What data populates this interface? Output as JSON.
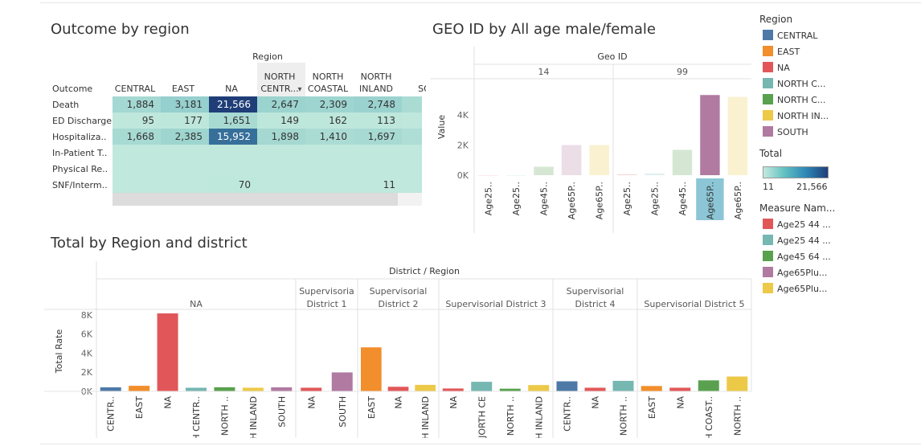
{
  "titles": {
    "outcome": "Outcome by region",
    "geo": "GEO ID by All age male/female",
    "total": "Total by Region and district"
  },
  "palette": {
    "CENTRAL": "#4e79a7",
    "EAST": "#f28e2b",
    "NA": "#e15759",
    "NORTH CENTRAL": "#76b7b2",
    "NORTH COASTAL": "#59a14f",
    "NORTH INLAND": "#edc948",
    "SOUTH": "#b07aa1"
  },
  "legend_region": {
    "title": "Region",
    "items": [
      {
        "label": "CENTRAL",
        "color": "#4e79a7"
      },
      {
        "label": "EAST",
        "color": "#f28e2b"
      },
      {
        "label": "NA",
        "color": "#e15759"
      },
      {
        "label": "NORTH C...",
        "color": "#76b7b2"
      },
      {
        "label": "NORTH C...",
        "color": "#59a14f"
      },
      {
        "label": "NORTH IN...",
        "color": "#edc948"
      },
      {
        "label": "SOUTH",
        "color": "#b07aa1"
      }
    ]
  },
  "legend_total": {
    "title": "Total",
    "min": "11",
    "max": "21,566"
  },
  "legend_measure": {
    "title": "Measure Nam...",
    "items": [
      {
        "label": "Age25 44 ...",
        "color": "#e15759"
      },
      {
        "label": "Age25 44 ...",
        "color": "#76b7b2"
      },
      {
        "label": "Age45 64 ...",
        "color": "#59a14f"
      },
      {
        "label": "Age65Plu...",
        "color": "#b07aa1"
      },
      {
        "label": "Age65Plu...",
        "color": "#edc948"
      }
    ]
  },
  "chart_data": [
    {
      "type": "table",
      "title": "Outcome by region",
      "column_header": "Region",
      "row_header": "Outcome",
      "columns": [
        {
          "line1": "",
          "line2": "CENTRAL"
        },
        {
          "line1": "",
          "line2": "EAST"
        },
        {
          "line1": "",
          "line2": "NA"
        },
        {
          "line1": "NORTH",
          "line2": "CENTR..."
        },
        {
          "line1": "NORTH",
          "line2": "COASTAL"
        },
        {
          "line1": "NORTH",
          "line2": "INLAND"
        },
        {
          "line1": "",
          "line2": "SO"
        }
      ],
      "sort_glyph": "▾",
      "rows": [
        {
          "label": "Death",
          "cells": [
            {
              "v": "1,884",
              "n": 1884
            },
            {
              "v": "3,181",
              "n": 3181
            },
            {
              "v": "21,566",
              "n": 21566
            },
            {
              "v": "2,647",
              "n": 2647
            },
            {
              "v": "2,309",
              "n": 2309
            },
            {
              "v": "2,748",
              "n": 2748
            },
            {
              "v": "",
              "n": 1500
            }
          ]
        },
        {
          "label": "ED Discharge",
          "cells": [
            {
              "v": "95",
              "n": 95
            },
            {
              "v": "177",
              "n": 177
            },
            {
              "v": "1,651",
              "n": 1651
            },
            {
              "v": "149",
              "n": 149
            },
            {
              "v": "162",
              "n": 162
            },
            {
              "v": "113",
              "n": 113
            },
            {
              "v": "",
              "n": 100
            }
          ]
        },
        {
          "label": "Hospitaliza..",
          "cells": [
            {
              "v": "1,668",
              "n": 1668
            },
            {
              "v": "2,385",
              "n": 2385
            },
            {
              "v": "15,952",
              "n": 15952
            },
            {
              "v": "1,898",
              "n": 1898
            },
            {
              "v": "1,410",
              "n": 1410
            },
            {
              "v": "1,697",
              "n": 1697
            },
            {
              "v": "",
              "n": 1200
            }
          ]
        },
        {
          "label": "In-Patient T..",
          "cells": [
            {
              "v": "",
              "n": 11
            },
            {
              "v": "",
              "n": 11
            },
            {
              "v": "",
              "n": 11
            },
            {
              "v": "",
              "n": 11
            },
            {
              "v": "",
              "n": 11
            },
            {
              "v": "",
              "n": 11
            },
            {
              "v": "",
              "n": 11
            }
          ]
        },
        {
          "label": "Physical Re..",
          "cells": [
            {
              "v": "",
              "n": 11
            },
            {
              "v": "",
              "n": 11
            },
            {
              "v": "",
              "n": 11
            },
            {
              "v": "",
              "n": 11
            },
            {
              "v": "",
              "n": 11
            },
            {
              "v": "",
              "n": 11
            },
            {
              "v": "",
              "n": 11
            }
          ]
        },
        {
          "label": "SNF/Interm..",
          "cells": [
            {
              "v": "",
              "n": 11
            },
            {
              "v": "",
              "n": 11
            },
            {
              "v": "70",
              "n": 70
            },
            {
              "v": "",
              "n": 11
            },
            {
              "v": "",
              "n": 11
            },
            {
              "v": "11",
              "n": 11
            },
            {
              "v": "",
              "n": 11
            }
          ]
        }
      ],
      "color_range": [
        11,
        21566
      ]
    },
    {
      "type": "bar",
      "title": "GEO ID by All age male/female",
      "header": "Geo ID",
      "ylabel": "Value",
      "yticks": [
        "0K",
        "2K",
        "4K"
      ],
      "ylim": [
        0,
        5600
      ],
      "panels": [
        {
          "label": "14",
          "bars": [
            {
              "cat": "Age25..",
              "value": 0,
              "color": "#e15759"
            },
            {
              "cat": "Age25..",
              "value": 0,
              "color": "#76b7b2"
            },
            {
              "cat": "Age45..",
              "value": 560,
              "color": "#59a14f"
            },
            {
              "cat": "Age65P..",
              "value": 2000,
              "color": "#b07aa1"
            },
            {
              "cat": "Age65P..",
              "value": 2000,
              "color": "#edc948"
            }
          ]
        },
        {
          "label": "99",
          "bars": [
            {
              "cat": "Age25..",
              "value": 60,
              "color": "#e15759"
            },
            {
              "cat": "Age25..",
              "value": 100,
              "color": "#76b7b2"
            },
            {
              "cat": "Age45..",
              "value": 1680,
              "color": "#59a14f"
            },
            {
              "cat": "Age65P..",
              "value": 5320,
              "color": "#b07aa1"
            },
            {
              "cat": "Age65P..",
              "value": 5200,
              "color": "#edc948"
            }
          ]
        }
      ],
      "highlight": {
        "panel": 1,
        "bar": 3
      }
    },
    {
      "type": "bar",
      "title": "Total by Region and district",
      "header": "District / Region",
      "ylabel": "Total Rate",
      "yticks": [
        "0K",
        "2K",
        "4K",
        "6K",
        "8K"
      ],
      "ylim": [
        0,
        8400
      ],
      "panels": [
        {
          "label1": "",
          "label2": "NA",
          "bars": [
            {
              "cat": "CENTR..",
              "value": 420,
              "region": "CENTRAL"
            },
            {
              "cat": "EAST",
              "value": 580,
              "region": "EAST"
            },
            {
              "cat": "NA",
              "value": 8150,
              "region": "NA"
            },
            {
              "cat": "NORTH CENTR..",
              "value": 380,
              "region": "NORTH CENTRAL"
            },
            {
              "cat": "NORTH ..",
              "value": 430,
              "region": "NORTH COASTAL"
            },
            {
              "cat": "NORTH INLAND",
              "value": 380,
              "region": "NORTH INLAND"
            },
            {
              "cat": "SOUTH",
              "value": 420,
              "region": "SOUTH"
            }
          ]
        },
        {
          "label1": "Supervisoria",
          "label2": "District 1",
          "bars": [
            {
              "cat": "NA",
              "value": 380,
              "region": "NA"
            },
            {
              "cat": "SOUTH",
              "value": 1980,
              "region": "SOUTH"
            }
          ]
        },
        {
          "label1": "Supervisorial",
          "label2": "District 2",
          "bars": [
            {
              "cat": "EAST",
              "value": 4600,
              "region": "EAST"
            },
            {
              "cat": "NA",
              "value": 480,
              "region": "NA"
            },
            {
              "cat": "NORTH INLAND",
              "value": 680,
              "region": "NORTH INLAND"
            }
          ]
        },
        {
          "label1": "",
          "label2": "Supervisorial District 3",
          "bars": [
            {
              "cat": "NA",
              "value": 300,
              "region": "NA"
            },
            {
              "cat": "JORTH CE",
              "value": 1000,
              "region": "NORTH CENTRAL"
            },
            {
              "cat": "NORTH ..",
              "value": 280,
              "region": "NORTH COASTAL"
            },
            {
              "cat": "NORTH INLAND",
              "value": 660,
              "region": "NORTH INLAND"
            }
          ]
        },
        {
          "label1": "Supervisorial",
          "label2": "District 4",
          "bars": [
            {
              "cat": "CENTR..",
              "value": 1050,
              "region": "CENTRAL"
            },
            {
              "cat": "NA",
              "value": 380,
              "region": "NA"
            },
            {
              "cat": "NORTH ..",
              "value": 1100,
              "region": "NORTH CENTRAL"
            }
          ]
        },
        {
          "label1": "",
          "label2": "Supervisorial District 5",
          "bars": [
            {
              "cat": "EAST",
              "value": 560,
              "region": "EAST"
            },
            {
              "cat": "NA",
              "value": 380,
              "region": "NA"
            },
            {
              "cat": "NORTH COAST..",
              "value": 1150,
              "region": "NORTH COASTAL"
            },
            {
              "cat": "NORTH ..",
              "value": 1550,
              "region": "NORTH INLAND"
            }
          ]
        }
      ]
    }
  ]
}
